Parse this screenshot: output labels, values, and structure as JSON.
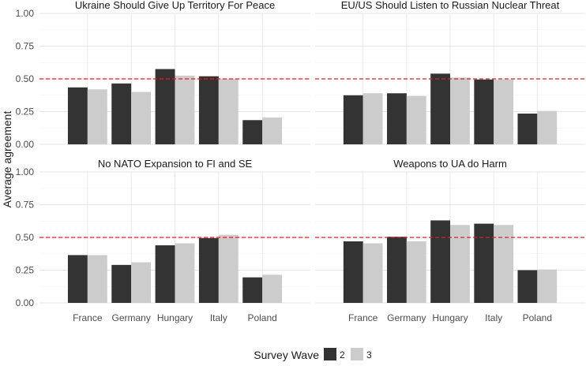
{
  "chart_data": {
    "type": "bar",
    "layout": "faceted 2x2",
    "ylabel": "Average agreement",
    "ylim": [
      0,
      1
    ],
    "yticks": [
      "0.00",
      "0.25",
      "0.50",
      "0.75",
      "1.00"
    ],
    "reference_line": {
      "value": 0.5,
      "style": "dashed",
      "color": "#e41a1c"
    },
    "categories": [
      "France",
      "Germany",
      "Hungary",
      "Italy",
      "Poland"
    ],
    "legend": {
      "title": "Survey Wave",
      "entries": [
        {
          "label": "2",
          "color": "#333333"
        },
        {
          "label": "3",
          "color": "#cccccc"
        }
      ]
    },
    "panels": [
      {
        "title": "Ukraine Should Give Up Territory For Peace",
        "series": [
          {
            "name": "2",
            "values": [
              0.435,
              0.465,
              0.575,
              0.52,
              0.185
            ]
          },
          {
            "name": "3",
            "values": [
              0.42,
              0.4,
              0.525,
              0.5,
              0.205
            ]
          }
        ]
      },
      {
        "title": "EU/US Should Listen to Russian Nuclear Threat",
        "series": [
          {
            "name": "2",
            "values": [
              0.375,
              0.39,
              0.54,
              0.495,
              0.235
            ]
          },
          {
            "name": "3",
            "values": [
              0.39,
              0.37,
              0.51,
              0.495,
              0.255
            ]
          }
        ]
      },
      {
        "title": "No NATO Expansion to FI and SE",
        "series": [
          {
            "name": "2",
            "values": [
              0.365,
              0.29,
              0.44,
              0.495,
              0.195
            ]
          },
          {
            "name": "3",
            "values": [
              0.365,
              0.31,
              0.455,
              0.52,
              0.215
            ]
          }
        ]
      },
      {
        "title": "Weapons to UA do Harm",
        "series": [
          {
            "name": "2",
            "values": [
              0.47,
              0.505,
              0.63,
              0.605,
              0.25
            ]
          },
          {
            "name": "3",
            "values": [
              0.455,
              0.47,
              0.595,
              0.595,
              0.255
            ]
          }
        ]
      }
    ]
  }
}
